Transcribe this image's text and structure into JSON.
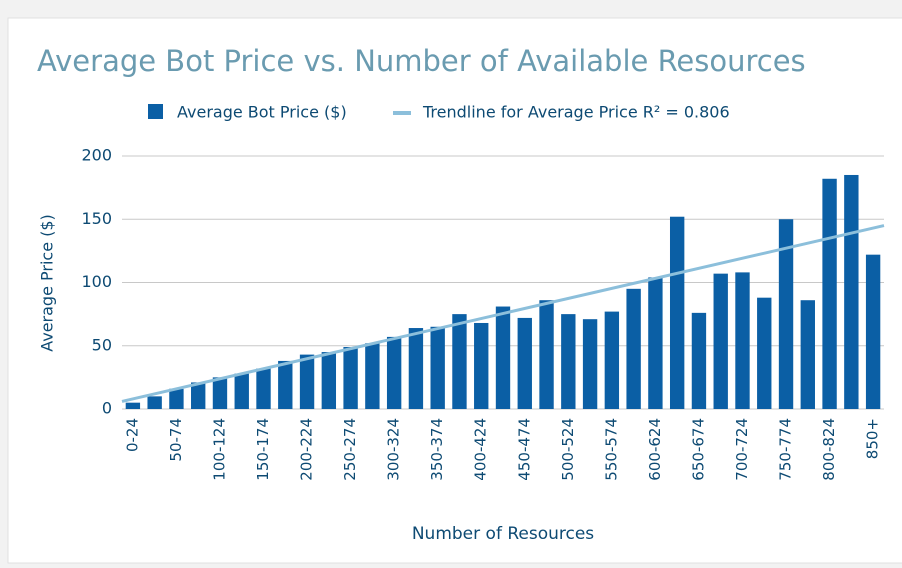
{
  "chart_data": {
    "type": "bar",
    "title": "Average Bot Price vs. Number of Available Resources",
    "xlabel": "Number of Resources",
    "ylabel": "Average Price ($)",
    "categories": [
      "0-24",
      null,
      "50-74",
      null,
      "100-124",
      null,
      "150-174",
      null,
      "200-224",
      null,
      "250-274",
      null,
      "300-324",
      null,
      "350-374",
      null,
      "400-424",
      null,
      "450-474",
      null,
      "500-524",
      null,
      "550-574",
      null,
      "600-624",
      null,
      "650-674",
      null,
      "700-724",
      null,
      "750-774",
      null,
      "800-824",
      null,
      "850+"
    ],
    "series": [
      {
        "name": "Average Bot Price ($)",
        "color": "#0b5fa5",
        "values": [
          5,
          10,
          16,
          21,
          25,
          28,
          32,
          38,
          43,
          45,
          49,
          52,
          57,
          64,
          65,
          75,
          68,
          81,
          72,
          86,
          75,
          71,
          77,
          95,
          104,
          152,
          76,
          107,
          108,
          88,
          150,
          86,
          182,
          185,
          122
        ]
      }
    ],
    "trendline": {
      "name": "Trendline for Average Price R² = 0.806",
      "color": "#8cbfdb",
      "values": [
        6,
        145
      ]
    },
    "ylim": [
      0,
      200
    ],
    "yticks": [
      0,
      50,
      100,
      150,
      200
    ],
    "grid": true,
    "legend": "top"
  }
}
